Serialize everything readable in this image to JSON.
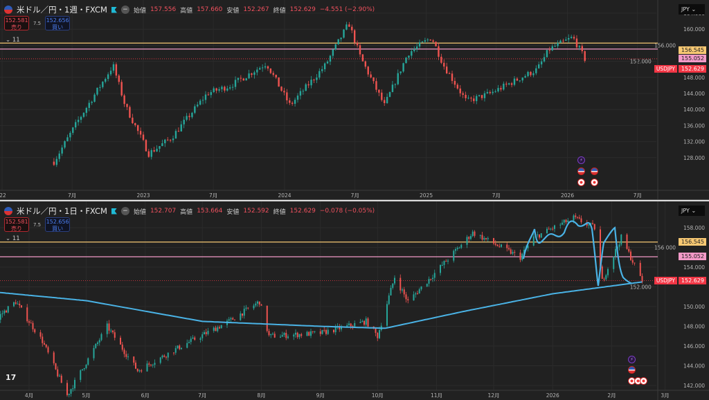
{
  "panes": [
    {
      "symbol": "米ドル／円・1週・FXCM",
      "open_label": "始値",
      "open": "157.556",
      "high_label": "高値",
      "high": "157.660",
      "low_label": "安値",
      "low": "152.267",
      "close_label": "終値",
      "close": "152.629",
      "change": "−4.551 (−2.90%)",
      "sell_price": "152.581",
      "sell_label": "売り",
      "spread": "7.5",
      "buy_price": "152.656",
      "buy_label": "買い",
      "indicator_toggle": "⌄ 11",
      "currency": "JPY",
      "y_ticks": [
        "164.000",
        "160.000",
        "156.000",
        "152.000",
        "148.000",
        "144.000",
        "140.000",
        "136.000",
        "132.000",
        "128.000"
      ],
      "x_ticks": [
        "'22",
        "7月",
        "2023",
        "7月",
        "2024",
        "7月",
        "2025",
        "7月",
        "2026",
        "7月"
      ]
    },
    {
      "symbol": "米ドル／円・1日・FXCM",
      "open_label": "始値",
      "open": "152.707",
      "high_label": "高値",
      "high": "153.664",
      "low_label": "安値",
      "low": "152.592",
      "close_label": "終値",
      "close": "152.629",
      "change": "−0.078 (−0.05%)",
      "sell_price": "152.581",
      "sell_label": "売り",
      "spread": "7.5",
      "buy_price": "152.656",
      "buy_label": "買い",
      "indicator_toggle": "⌄ 11",
      "currency": "JPY",
      "y_ticks": [
        "158.000",
        "156.000",
        "154.000",
        "152.000",
        "150.000",
        "148.000",
        "146.000",
        "144.000",
        "142.000"
      ],
      "x_ticks": [
        "4月",
        "5月",
        "6月",
        "7月",
        "8月",
        "9月",
        "10月",
        "11月",
        "12月",
        "2026",
        "2月",
        "3月"
      ]
    }
  ],
  "levels": [
    {
      "price": "156.545",
      "color": "#f7c873"
    },
    {
      "price": "155.052",
      "color": "#f39ac8"
    }
  ],
  "last_price": {
    "name": "USDJPY",
    "price": "152.629",
    "color": "#f23645"
  },
  "colors": {
    "up": "#26a69a",
    "down": "#ef5350",
    "ma": "#4ab3e6",
    "bg": "#212121"
  },
  "logo": "TV",
  "chart_data": [
    {
      "type": "candlestick",
      "timeframe": "1週",
      "ylim": [
        126,
        166
      ],
      "close_path": [
        [
          "2022-05",
          127
        ],
        [
          "2022-07",
          137
        ],
        [
          "2022-10",
          151
        ],
        [
          "2022-11",
          141
        ],
        [
          "2023-01",
          129
        ],
        [
          "2023-03",
          133
        ],
        [
          "2023-06",
          144
        ],
        [
          "2023-08",
          146
        ],
        [
          "2023-11",
          151.5
        ],
        [
          "2024-01",
          141
        ],
        [
          "2024-04",
          151
        ],
        [
          "2024-06",
          161.5
        ],
        [
          "2024-07",
          153
        ],
        [
          "2024-09",
          141
        ],
        [
          "2024-11",
          154
        ],
        [
          "2025-01",
          158
        ],
        [
          "2025-02",
          151
        ],
        [
          "2025-04",
          142
        ],
        [
          "2025-06",
          144
        ],
        [
          "2025-08",
          147
        ],
        [
          "2025-10",
          150
        ],
        [
          "2025-11",
          155
        ],
        [
          "2026-01",
          158
        ],
        [
          "2026-02",
          152.6
        ]
      ]
    },
    {
      "type": "candlestick",
      "timeframe": "1日",
      "ylim": [
        141.8,
        159.5
      ],
      "close_path": [
        [
          "2025-03-07",
          147.5
        ],
        [
          "2025-03-25",
          150.5
        ],
        [
          "2025-04-08",
          146.5
        ],
        [
          "2025-04-21",
          141
        ],
        [
          "2025-05-12",
          148
        ],
        [
          "2025-05-28",
          143.5
        ],
        [
          "2025-06-20",
          146
        ],
        [
          "2025-07-15",
          148.5
        ],
        [
          "2025-07-31",
          150.5
        ],
        [
          "2025-08-05",
          147
        ],
        [
          "2025-09-01",
          147.3
        ],
        [
          "2025-09-25",
          148.5
        ],
        [
          "2025-10-01",
          147
        ],
        [
          "2025-10-10",
          153
        ],
        [
          "2025-10-17",
          150.5
        ],
        [
          "2025-11-03",
          154
        ],
        [
          "2025-11-20",
          157.5
        ],
        [
          "2025-12-15",
          155
        ],
        [
          "2025-12-22",
          157
        ],
        [
          "2026-01-12",
          159
        ],
        [
          "2026-01-23",
          158
        ],
        [
          "2026-01-27",
          152.6
        ],
        [
          "2026-02-06",
          157
        ],
        [
          "2026-02-17",
          152.6
        ]
      ],
      "ma_path": [
        [
          "2025-03-07",
          151.6
        ],
        [
          "2025-05-01",
          150.6
        ],
        [
          "2025-07-01",
          148.5
        ],
        [
          "2025-09-01",
          148
        ],
        [
          "2025-10-05",
          147.8
        ],
        [
          "2025-11-15",
          149.5
        ],
        [
          "2026-01-01",
          151.3
        ],
        [
          "2026-02-17",
          152.5
        ]
      ]
    }
  ]
}
